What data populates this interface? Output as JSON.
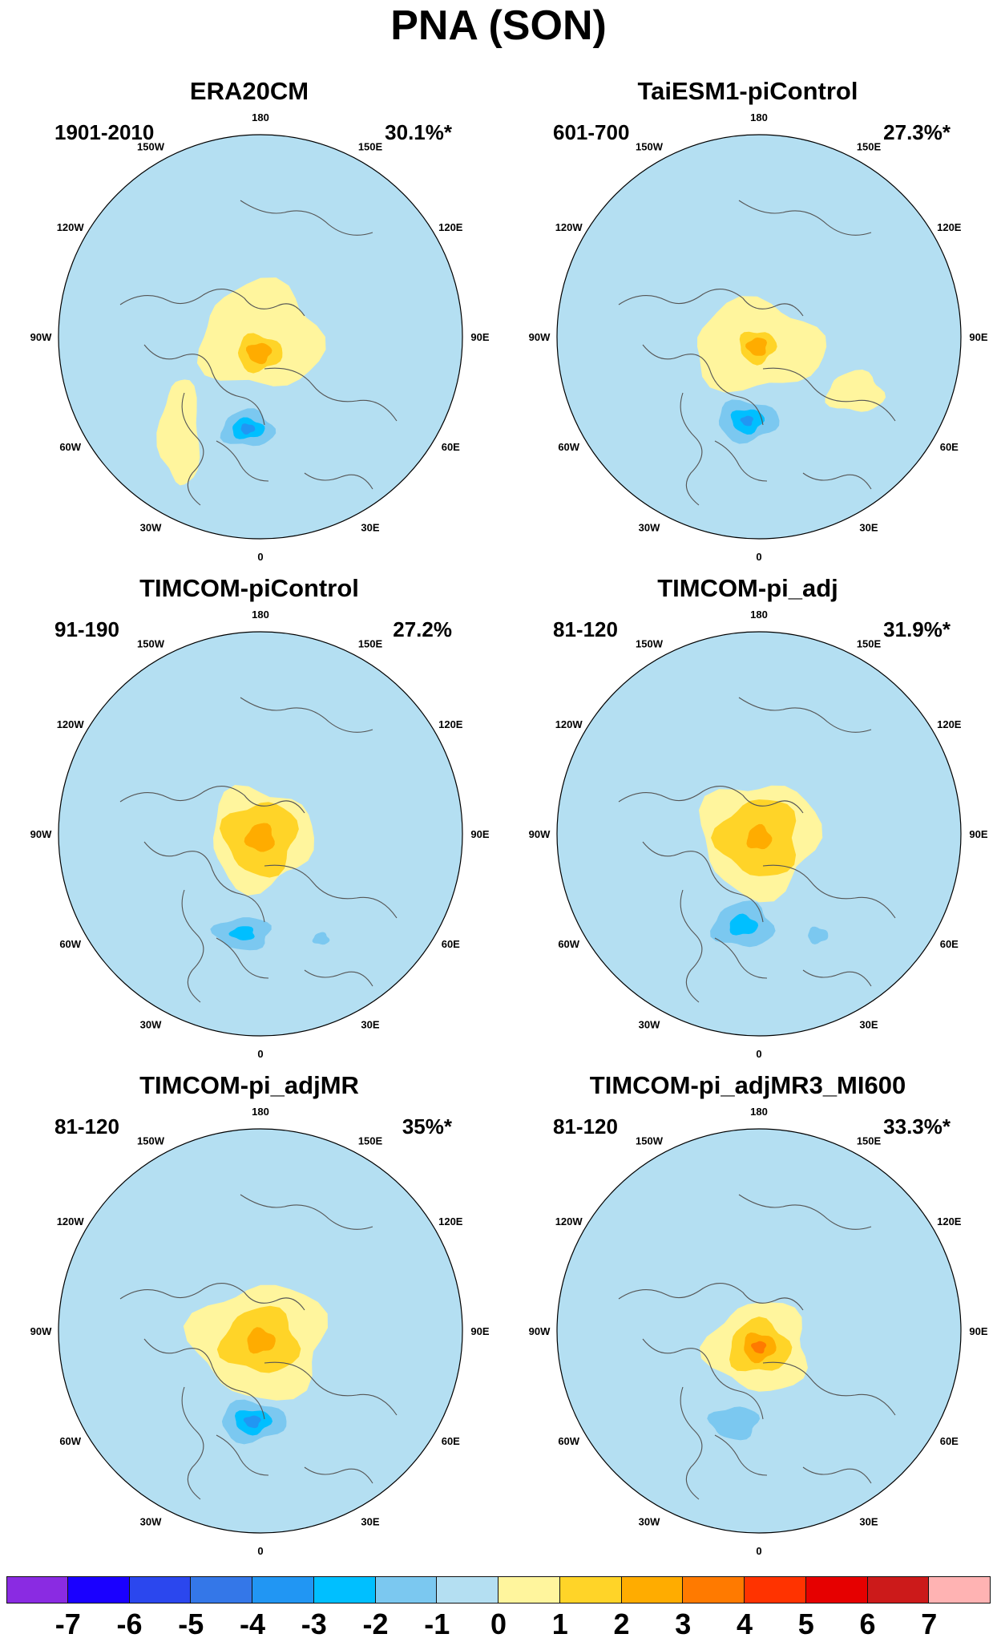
{
  "title": "PNA (SON)",
  "colors": {
    "bin_colors": [
      "#8A2BE2",
      "#1A00FF",
      "#2B47EE",
      "#3477E8",
      "#2196F3",
      "#00BFFF",
      "#7BC8F0",
      "#B4DFF2",
      "#FFF59D",
      "#FFD428",
      "#FFAC00",
      "#FF7A00",
      "#FF3300",
      "#E60000",
      "#CC1A1A",
      "#FFB3B3"
    ],
    "coastline": "#555555",
    "lightblue": "#B4DFF2",
    "yellow": "#FFF59D"
  },
  "lon_labels": [
    "180",
    "150E",
    "120E",
    "90E",
    "60E",
    "30E",
    "0",
    "30W",
    "60W",
    "90W",
    "120W",
    "150W"
  ],
  "panels": [
    {
      "title": "ERA20CM",
      "period": "1901-2010",
      "variance": "30.1%*",
      "neg": [
        [
          -8,
          0.46,
          0.13,
          0.09,
          "#7BC8F0"
        ],
        [
          -8,
          0.46,
          0.08,
          0.05,
          "#00BFFF"
        ],
        [
          -8,
          0.46,
          0.035,
          0.025,
          "#2196F3"
        ]
      ],
      "pos": [
        [
          0,
          0,
          0.3,
          0.26,
          "#FFF59D"
        ],
        [
          -5,
          0.08,
          0.11,
          0.09,
          "#FFD428"
        ],
        [
          -5,
          0.08,
          0.06,
          0.05,
          "#FFAC00"
        ],
        [
          -40,
          0.62,
          0.1,
          0.26,
          "#FFF59D"
        ]
      ]
    },
    {
      "title": "TaiESM1-piControl",
      "period": "601-700",
      "variance": "27.3%*",
      "neg": [
        [
          -8,
          0.42,
          0.15,
          0.1,
          "#7BC8F0"
        ],
        [
          -8,
          0.42,
          0.08,
          0.06,
          "#00BFFF"
        ],
        [
          -8,
          0.42,
          0.03,
          0.025,
          "#2196F3"
        ]
      ],
      "pos": [
        [
          -10,
          0.05,
          0.32,
          0.22,
          "#FFF59D"
        ],
        [
          -10,
          0.05,
          0.09,
          0.08,
          "#FFD428"
        ],
        [
          -10,
          0.05,
          0.05,
          0.045,
          "#FFAC00"
        ],
        [
          60,
          0.55,
          0.14,
          0.1,
          "#FFF59D"
        ]
      ]
    },
    {
      "title": "TIMCOM-piControl",
      "period": "91-190",
      "variance": "27.2%",
      "neg": [
        [
          -10,
          0.5,
          0.14,
          0.08,
          "#7BC8F0"
        ],
        [
          -10,
          0.5,
          0.06,
          0.035,
          "#00BFFF"
        ],
        [
          30,
          0.6,
          0.04,
          0.03,
          "#7BC8F0"
        ]
      ],
      "pos": [
        [
          0,
          0.02,
          0.25,
          0.25,
          "#FFF59D"
        ],
        [
          0,
          0.02,
          0.18,
          0.18,
          "#FFD428"
        ],
        [
          0,
          0.02,
          0.07,
          0.07,
          "#FFAC00"
        ]
      ]
    },
    {
      "title": "TIMCOM-pi_adj",
      "period": "81-120",
      "variance": "31.9%*",
      "neg": [
        [
          -10,
          0.46,
          0.15,
          0.11,
          "#7BC8F0"
        ],
        [
          -10,
          0.46,
          0.07,
          0.05,
          "#00BFFF"
        ],
        [
          30,
          0.58,
          0.05,
          0.04,
          "#7BC8F0"
        ]
      ],
      "pos": [
        [
          0,
          0.02,
          0.29,
          0.28,
          "#FFF59D"
        ],
        [
          0,
          0.02,
          0.2,
          0.19,
          "#FFD428"
        ],
        [
          0,
          0.02,
          0.06,
          0.06,
          "#FFAC00"
        ]
      ]
    },
    {
      "title": "TIMCOM-pi_adjMR",
      "period": "81-120",
      "variance": "35%*",
      "neg": [
        [
          -5,
          0.45,
          0.16,
          0.1,
          "#7BC8F0"
        ],
        [
          -5,
          0.45,
          0.09,
          0.06,
          "#00BFFF"
        ],
        [
          -5,
          0.45,
          0.04,
          0.03,
          "#2196F3"
        ]
      ],
      "pos": [
        [
          0,
          0.05,
          0.33,
          0.28,
          "#FFF59D"
        ],
        [
          0,
          0.05,
          0.19,
          0.16,
          "#FFD428"
        ],
        [
          0,
          0.05,
          0.07,
          0.06,
          "#FFAC00"
        ]
      ]
    },
    {
      "title": "TIMCOM-pi_adjMR3_MI600",
      "period": "81-120",
      "variance": "33.3%*",
      "neg": [
        [
          -15,
          0.47,
          0.12,
          0.08,
          "#7BC8F0"
        ]
      ],
      "pos": [
        [
          0,
          0.08,
          0.25,
          0.22,
          "#FFF59D"
        ],
        [
          0,
          0.08,
          0.15,
          0.13,
          "#FFD428"
        ],
        [
          0,
          0.08,
          0.08,
          0.07,
          "#FFAC00"
        ],
        [
          0,
          0.08,
          0.035,
          0.03,
          "#FF7A00"
        ]
      ]
    }
  ],
  "colorbar": {
    "labels": [
      "-7",
      "-6",
      "-5",
      "-4",
      "-3",
      "-2",
      "-1",
      "0",
      "1",
      "2",
      "3",
      "4",
      "5",
      "6",
      "7"
    ]
  }
}
